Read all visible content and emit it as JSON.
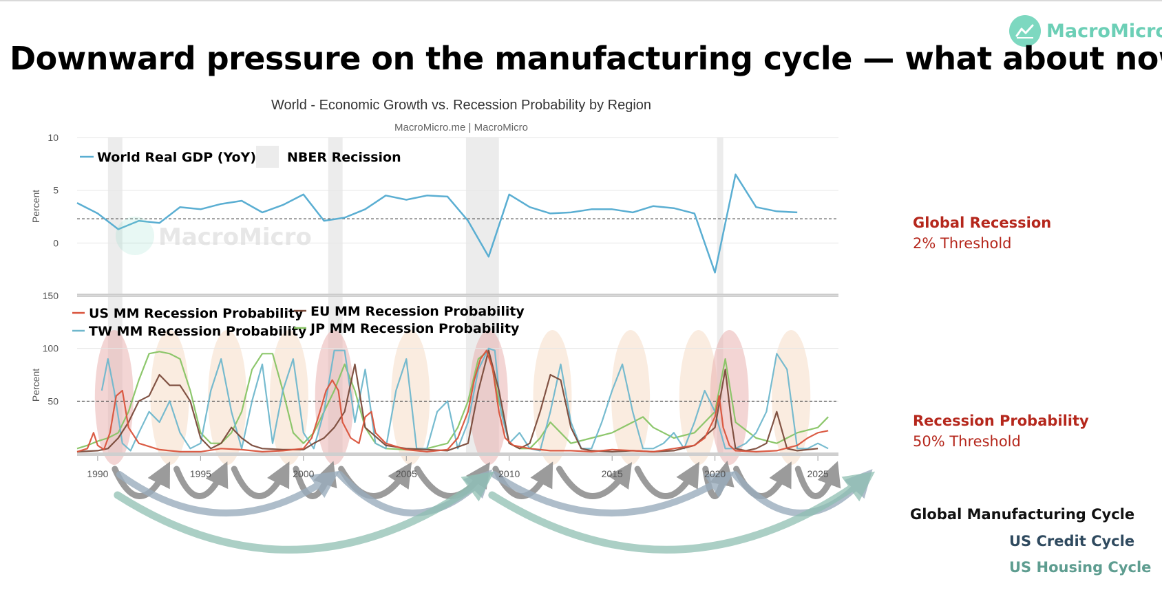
{
  "brand": {
    "name": "MacroMicro",
    "accent": "#6ccfb6"
  },
  "page_title": "Downward pressure on the manufacturing cycle — what about now?",
  "annotations": {
    "global_recession_title": "Global Recession",
    "global_recession_threshold": "2% Threshold",
    "recession_prob_title": "Recession Probability",
    "recession_prob_threshold": "50% Threshold"
  },
  "cycles": [
    {
      "label": "Global Manufacturing Cycle",
      "color": "#111111"
    },
    {
      "label": "US Credit Cycle",
      "color": "#2f4a5f"
    },
    {
      "label": "US Housing Cycle",
      "color": "#5e9d90"
    }
  ],
  "chart_data": [
    {
      "type": "line",
      "title": "World - Economic Growth vs. Recession Probability by Region",
      "subtitle": "MacroMicro.me | MacroMicro",
      "ylabel": "Percent",
      "ylim": [
        -5,
        10
      ],
      "yticks": [
        0,
        5,
        10
      ],
      "threshold": 2.3,
      "legend": [
        "World Real GDP (YoY)",
        "NBER Recission"
      ],
      "series": [
        {
          "name": "World Real GDP (YoY)",
          "color": "#5aaed2",
          "x": [
            1989,
            1990,
            1991,
            1992,
            1993,
            1994,
            1995,
            1996,
            1997,
            1998,
            1999,
            2000,
            2001,
            2002,
            2003,
            2004,
            2005,
            2006,
            2007,
            2008,
            2009,
            2010,
            2011,
            2012,
            2013,
            2014,
            2015,
            2016,
            2017,
            2018,
            2019,
            2020,
            2021,
            2022,
            2023,
            2024
          ],
          "y": [
            3.8,
            2.8,
            1.3,
            2.1,
            1.9,
            3.4,
            3.2,
            3.7,
            4.0,
            2.9,
            3.6,
            4.6,
            2.1,
            2.4,
            3.2,
            4.5,
            4.1,
            4.5,
            4.4,
            2.1,
            -1.3,
            4.6,
            3.4,
            2.8,
            2.9,
            3.2,
            3.2,
            2.9,
            3.5,
            3.3,
            2.8,
            -2.8,
            6.5,
            3.4,
            3.0,
            2.9
          ]
        }
      ],
      "recessions": [
        [
          1990.5,
          1991.2
        ],
        [
          2001.2,
          2001.9
        ],
        [
          2007.9,
          2009.5
        ],
        [
          2020.1,
          2020.4
        ]
      ]
    },
    {
      "type": "line",
      "ylabel": "Percent",
      "ylim": [
        0,
        150
      ],
      "yticks": [
        50,
        100,
        150
      ],
      "threshold": 50,
      "xlim": [
        1989,
        2026
      ],
      "xticks": [
        1990,
        1995,
        2000,
        2005,
        2010,
        2015,
        2020,
        2025
      ],
      "legend": [
        "US MM Recession Probability",
        "EU MM Recession Probability",
        "TW MM Recession Probability",
        "JP MM Recession Probability"
      ],
      "series": [
        {
          "name": "US MM Recession Probability",
          "color": "#d9533b",
          "x": [
            1989.0,
            1989.5,
            1989.8,
            1990.0,
            1990.3,
            1990.6,
            1990.9,
            1991.2,
            1991.5,
            1992.0,
            1993.0,
            1994.0,
            1995.0,
            1996.0,
            1997.0,
            1998.0,
            1999.0,
            2000.0,
            2000.4,
            2000.8,
            2001.1,
            2001.4,
            2001.7,
            2001.9,
            2002.3,
            2002.7,
            2003.0,
            2003.3,
            2003.5,
            2004.0,
            2005.0,
            2006.0,
            2007.0,
            2007.5,
            2008.0,
            2008.3,
            2008.6,
            2008.9,
            2009.2,
            2009.5,
            2009.8,
            2010.2,
            2011.0,
            2012.0,
            2013.0,
            2014.0,
            2015.0,
            2016.0,
            2017.0,
            2018.0,
            2019.0,
            2019.5,
            2020.0,
            2020.2,
            2020.4,
            2020.7,
            2021.0,
            2022.0,
            2023.0,
            2024.0,
            2024.5,
            2025.0,
            2025.5
          ],
          "y": [
            2,
            5,
            20,
            8,
            4,
            20,
            55,
            60,
            25,
            10,
            4,
            2,
            2,
            5,
            4,
            2,
            3,
            5,
            15,
            40,
            60,
            70,
            60,
            30,
            15,
            10,
            35,
            40,
            20,
            10,
            4,
            2,
            4,
            15,
            40,
            70,
            90,
            98,
            80,
            40,
            15,
            8,
            5,
            3,
            3,
            2,
            4,
            3,
            2,
            5,
            8,
            15,
            35,
            55,
            25,
            8,
            3,
            2,
            3,
            8,
            15,
            20,
            22
          ]
        },
        {
          "name": "EU MM Recession Probability",
          "color": "#7a4a3a",
          "x": [
            1989.0,
            1990.0,
            1990.5,
            1991.0,
            1991.5,
            1992.0,
            1992.5,
            1993.0,
            1993.5,
            1994.0,
            1994.5,
            1995.0,
            1995.5,
            1996.0,
            1996.5,
            1997.0,
            1997.5,
            1998.0,
            1999.0,
            2000.0,
            2000.5,
            2001.0,
            2001.5,
            2002.0,
            2002.5,
            2003.0,
            2004.0,
            2005.0,
            2006.0,
            2007.0,
            2008.0,
            2008.5,
            2009.0,
            2009.5,
            2010.0,
            2010.5,
            2011.0,
            2011.5,
            2012.0,
            2012.5,
            2013.0,
            2013.5,
            2014.0,
            2015.0,
            2016.0,
            2017.0,
            2018.0,
            2019.0,
            2020.0,
            2020.5,
            2020.8,
            2021.0,
            2021.5,
            2022.0,
            2022.5,
            2023.0,
            2023.5,
            2024.0,
            2025.0
          ],
          "y": [
            2,
            3,
            5,
            15,
            30,
            50,
            55,
            75,
            65,
            65,
            50,
            15,
            5,
            10,
            25,
            15,
            8,
            5,
            4,
            4,
            10,
            15,
            25,
            40,
            85,
            25,
            8,
            5,
            4,
            3,
            10,
            60,
            98,
            60,
            10,
            5,
            10,
            40,
            75,
            70,
            25,
            5,
            3,
            2,
            3,
            2,
            3,
            8,
            25,
            80,
            30,
            5,
            3,
            5,
            10,
            40,
            5,
            3,
            5
          ]
        },
        {
          "name": "TW MM Recession Probability",
          "color": "#6fb7cc",
          "x": [
            1990.2,
            1990.5,
            1990.8,
            1991.2,
            1991.6,
            1992.0,
            1992.5,
            1993.0,
            1993.5,
            1994.0,
            1994.5,
            1995.0,
            1995.5,
            1996.0,
            1996.5,
            1997.0,
            1997.5,
            1998.0,
            1998.5,
            1999.0,
            1999.5,
            2000.0,
            2000.5,
            2001.0,
            2001.5,
            2002.0,
            2002.5,
            2003.0,
            2003.5,
            2004.0,
            2004.5,
            2005.0,
            2005.5,
            2006.0,
            2006.5,
            2007.0,
            2007.5,
            2008.0,
            2008.5,
            2009.0,
            2009.3,
            2009.6,
            2010.0,
            2010.5,
            2011.0,
            2011.5,
            2012.0,
            2012.5,
            2013.0,
            2013.5,
            2014.0,
            2014.5,
            2015.0,
            2015.5,
            2016.0,
            2016.5,
            2017.0,
            2017.5,
            2018.0,
            2018.5,
            2019.0,
            2019.5,
            2020.0,
            2020.5,
            2021.0,
            2021.5,
            2022.0,
            2022.5,
            2023.0,
            2023.5,
            2024.0,
            2024.5,
            2025.0,
            2025.5
          ],
          "y": [
            60,
            90,
            60,
            10,
            3,
            20,
            40,
            30,
            50,
            20,
            5,
            10,
            60,
            90,
            40,
            5,
            50,
            85,
            10,
            60,
            90,
            20,
            5,
            40,
            98,
            98,
            30,
            80,
            10,
            5,
            60,
            90,
            5,
            5,
            40,
            50,
            5,
            30,
            80,
            100,
            98,
            40,
            10,
            20,
            5,
            3,
            40,
            85,
            30,
            5,
            5,
            30,
            60,
            85,
            40,
            5,
            5,
            10,
            20,
            5,
            30,
            60,
            40,
            5,
            5,
            10,
            20,
            40,
            95,
            80,
            5,
            5,
            10,
            5
          ]
        },
        {
          "name": "JP MM Recession Probability",
          "color": "#87c464",
          "x": [
            1989.0,
            1989.5,
            1990.0,
            1990.5,
            1991.0,
            1991.5,
            1992.0,
            1992.5,
            1993.0,
            1993.5,
            1994.0,
            1994.5,
            1995.0,
            1995.5,
            1996.0,
            1996.5,
            1997.0,
            1997.5,
            1998.0,
            1998.5,
            1999.0,
            1999.5,
            2000.0,
            2000.5,
            2001.0,
            2001.5,
            2002.0,
            2002.5,
            2003.0,
            2003.5,
            2004.0,
            2005.0,
            2006.0,
            2007.0,
            2007.5,
            2008.0,
            2008.5,
            2009.0,
            2009.5,
            2010.0,
            2010.5,
            2011.0,
            2011.5,
            2012.0,
            2012.5,
            2013.0,
            2014.0,
            2015.0,
            2016.0,
            2016.5,
            2017.0,
            2018.0,
            2019.0,
            2019.5,
            2020.0,
            2020.3,
            2020.5,
            2021.0,
            2022.0,
            2023.0,
            2024.0,
            2025.0,
            2025.5
          ],
          "y": [
            5,
            8,
            12,
            15,
            20,
            40,
            70,
            95,
            97,
            95,
            90,
            60,
            20,
            10,
            10,
            20,
            40,
            80,
            95,
            95,
            60,
            20,
            10,
            20,
            40,
            60,
            85,
            60,
            25,
            10,
            5,
            4,
            5,
            10,
            25,
            50,
            90,
            98,
            50,
            10,
            5,
            5,
            15,
            30,
            20,
            10,
            15,
            20,
            30,
            35,
            25,
            15,
            20,
            30,
            40,
            70,
            90,
            30,
            15,
            10,
            20,
            25,
            35
          ]
        }
      ],
      "recessions": [
        [
          1990.5,
          1991.2
        ],
        [
          2001.2,
          2001.9
        ],
        [
          2007.9,
          2009.5
        ],
        [
          2020.1,
          2020.4
        ]
      ],
      "highlight_ovals": [
        {
          "center": 1990.8,
          "tone": "red"
        },
        {
          "center": 1993.5,
          "tone": "beige"
        },
        {
          "center": 1996.3,
          "tone": "beige"
        },
        {
          "center": 1999.3,
          "tone": "beige"
        },
        {
          "center": 2001.5,
          "tone": "red"
        },
        {
          "center": 2005.2,
          "tone": "beige"
        },
        {
          "center": 2009.0,
          "tone": "red"
        },
        {
          "center": 2012.1,
          "tone": "beige"
        },
        {
          "center": 2015.9,
          "tone": "beige"
        },
        {
          "center": 2019.2,
          "tone": "beige"
        },
        {
          "center": 2020.7,
          "tone": "red"
        },
        {
          "center": 2023.7,
          "tone": "beige"
        }
      ]
    }
  ]
}
